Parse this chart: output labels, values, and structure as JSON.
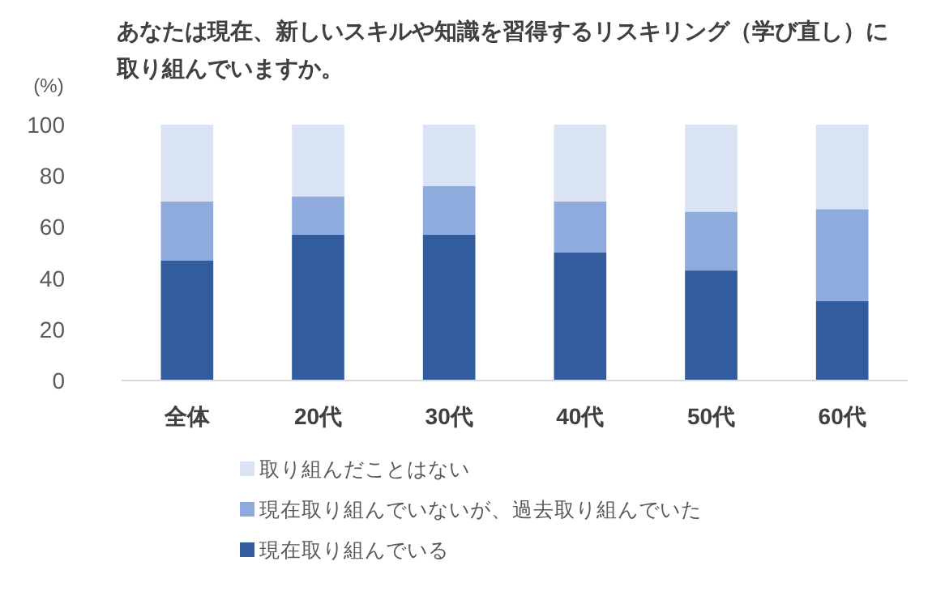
{
  "chart_data": {
    "type": "bar",
    "stacked": true,
    "title": "あなたは現在、新しいスキルや知識を習得するリスキリング（学び直し）に取り組んでいますか。",
    "ylabel": "(%)",
    "categories": [
      "全体",
      "20代",
      "30代",
      "40代",
      "50代",
      "60代"
    ],
    "series": [
      {
        "name": "現在取り組んでいる",
        "color": "#335c9e",
        "values": [
          47,
          57,
          57,
          50,
          43,
          31
        ]
      },
      {
        "name": "現在取り組んでいないが、過去取り組んでいた",
        "color": "#8faadc",
        "values": [
          23,
          15,
          19,
          20,
          23,
          36
        ]
      },
      {
        "name": "取り組んだことはない",
        "color": "#dae3f3",
        "values": [
          30,
          28,
          24,
          30,
          34,
          33
        ]
      }
    ],
    "ylim": [
      0,
      100
    ],
    "yticks": [
      0,
      20,
      40,
      60,
      80,
      100
    ],
    "grid": false,
    "legend": "bottom"
  }
}
